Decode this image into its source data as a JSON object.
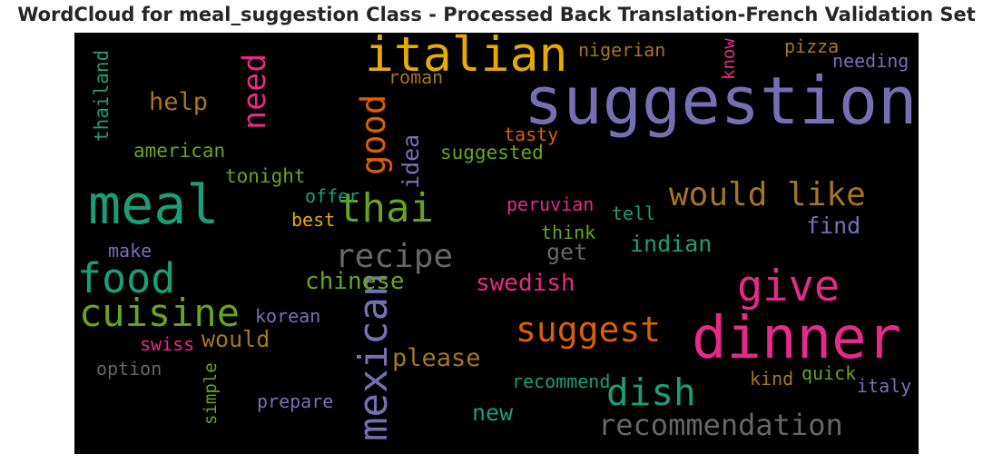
{
  "chart_data": {
    "type": "wordcloud",
    "title": "WordCloud for meal_suggestion Class - Processed Back Translation-French Validation Set",
    "background": "#000000",
    "words": [
      {
        "text": "suggestion",
        "weight": 1.0,
        "color": "#7570b3"
      },
      {
        "text": "dinner",
        "weight": 0.88,
        "color": "#e7298a"
      },
      {
        "text": "meal",
        "weight": 0.82,
        "color": "#1b9e77"
      },
      {
        "text": "italian",
        "weight": 0.72,
        "color": "#e6ab02"
      },
      {
        "text": "give",
        "weight": 0.63,
        "color": "#e7298a"
      },
      {
        "text": "food",
        "weight": 0.6,
        "color": "#1b9e77"
      },
      {
        "text": "thai",
        "weight": 0.58,
        "color": "#66a61e"
      },
      {
        "text": "mexican",
        "weight": 0.58,
        "color": "#7570b3"
      },
      {
        "text": "cuisine",
        "weight": 0.56,
        "color": "#66a61e"
      },
      {
        "text": "dish",
        "weight": 0.54,
        "color": "#1b9e77"
      },
      {
        "text": "suggest",
        "weight": 0.5,
        "color": "#d95f02"
      },
      {
        "text": "good",
        "weight": 0.48,
        "color": "#d95f02"
      },
      {
        "text": "would like",
        "weight": 0.47,
        "color": "#a6761d"
      },
      {
        "text": "recipe",
        "weight": 0.47,
        "color": "#666666"
      },
      {
        "text": "need",
        "weight": 0.45,
        "color": "#e7298a"
      },
      {
        "text": "recommendation",
        "weight": 0.4,
        "color": "#666666"
      },
      {
        "text": "help",
        "weight": 0.34,
        "color": "#a6761d"
      },
      {
        "text": "please",
        "weight": 0.34,
        "color": "#a6761d"
      },
      {
        "text": "chinese",
        "weight": 0.32,
        "color": "#66a61e"
      },
      {
        "text": "swedish",
        "weight": 0.32,
        "color": "#e7298a"
      },
      {
        "text": "indian",
        "weight": 0.31,
        "color": "#1b9e77"
      },
      {
        "text": "find",
        "weight": 0.31,
        "color": "#7570b3"
      },
      {
        "text": "idea",
        "weight": 0.3,
        "color": "#7570b3"
      },
      {
        "text": "get",
        "weight": 0.3,
        "color": "#666666"
      },
      {
        "text": "new",
        "weight": 0.3,
        "color": "#1b9e77"
      },
      {
        "text": "would",
        "weight": 0.3,
        "color": "#a6761d"
      },
      {
        "text": "american",
        "weight": 0.24,
        "color": "#66a61e"
      },
      {
        "text": "suggested",
        "weight": 0.24,
        "color": "#66a61e"
      },
      {
        "text": "tonight",
        "weight": 0.24,
        "color": "#66a61e"
      },
      {
        "text": "thailand",
        "weight": 0.24,
        "color": "#1b9e77"
      },
      {
        "text": "roman",
        "weight": 0.23,
        "color": "#a6761d"
      },
      {
        "text": "tasty",
        "weight": 0.23,
        "color": "#d95f02"
      },
      {
        "text": "nigerian",
        "weight": 0.23,
        "color": "#a6761d"
      },
      {
        "text": "needing",
        "weight": 0.23,
        "color": "#7570b3"
      },
      {
        "text": "pizza",
        "weight": 0.23,
        "color": "#a6761d"
      },
      {
        "text": "know",
        "weight": 0.21,
        "color": "#e7298a"
      },
      {
        "text": "offer",
        "weight": 0.23,
        "color": "#1b9e77"
      },
      {
        "text": "best",
        "weight": 0.23,
        "color": "#e6ab02"
      },
      {
        "text": "peruvian",
        "weight": 0.23,
        "color": "#e7298a"
      },
      {
        "text": "tell",
        "weight": 0.23,
        "color": "#1b9e77"
      },
      {
        "text": "think",
        "weight": 0.23,
        "color": "#66a61e"
      },
      {
        "text": "make",
        "weight": 0.23,
        "color": "#7570b3"
      },
      {
        "text": "korean",
        "weight": 0.23,
        "color": "#7570b3"
      },
      {
        "text": "swiss",
        "weight": 0.23,
        "color": "#e7298a"
      },
      {
        "text": "option",
        "weight": 0.23,
        "color": "#666666"
      },
      {
        "text": "simple",
        "weight": 0.21,
        "color": "#66a61e"
      },
      {
        "text": "prepare",
        "weight": 0.23,
        "color": "#7570b3"
      },
      {
        "text": "recommend",
        "weight": 0.23,
        "color": "#1b9e77"
      },
      {
        "text": "kind",
        "weight": 0.23,
        "color": "#a6761d"
      },
      {
        "text": "quick",
        "weight": 0.23,
        "color": "#66a61e"
      },
      {
        "text": "italy",
        "weight": 0.23,
        "color": "#7570b3"
      }
    ]
  }
}
